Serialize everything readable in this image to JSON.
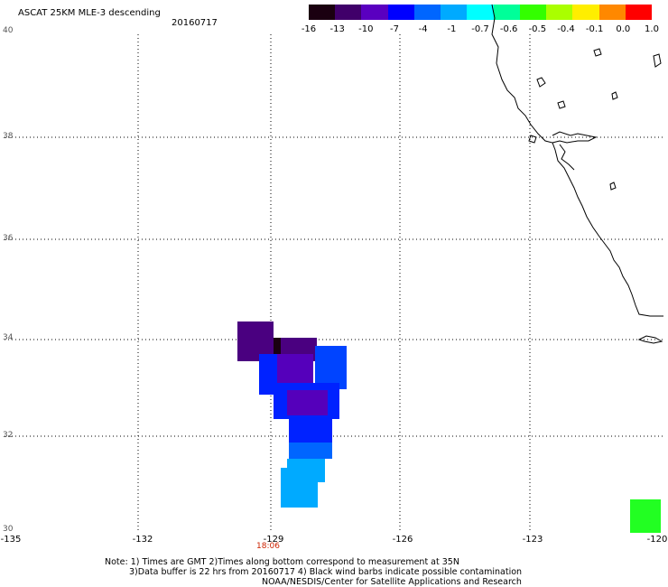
{
  "header": {
    "title": "ASCAT 25KM MLE-3 descending",
    "date": "20160717"
  },
  "colorbar": {
    "labels": [
      "-16",
      "-13",
      "-10",
      "-7",
      "-4",
      "-1",
      "-0.7",
      "-0.6",
      "-0.5",
      "-0.4",
      "-0.1",
      "0.0",
      "1.0"
    ],
    "colors": [
      "#1a0010",
      "#40006a",
      "#5a00c0",
      "#0000ff",
      "#0066ff",
      "#00aaff",
      "#00ffff",
      "#00ff99",
      "#33ff00",
      "#aaff00",
      "#ffee00",
      "#ff8800",
      "#ff0000"
    ]
  },
  "axes": {
    "lat_labels": [
      "40",
      "38",
      "36",
      "34",
      "32",
      "30"
    ],
    "lon_labels": [
      "-135",
      "-132",
      "-129",
      "-126",
      "-123",
      "-120"
    ],
    "time_label": "18:06",
    "time_label_color": "#cc2200"
  },
  "notes": {
    "line1": "Note: 1) Times are GMT 2)Times along bottom correspond to measurement at 35N",
    "line2": "3)Data buffer is 22 hrs from 20160717 4) Black wind barbs indicate possible contamination",
    "line3": "NOAA/NESDIS/Center for Satellite Applications and Research"
  },
  "colors": {
    "dark_purple": "#4a0080",
    "purple": "#5500bb",
    "blue": "#0022ff",
    "mid_blue": "#0044ff",
    "light_blue": "#00aaff",
    "green": "#22ff22"
  }
}
